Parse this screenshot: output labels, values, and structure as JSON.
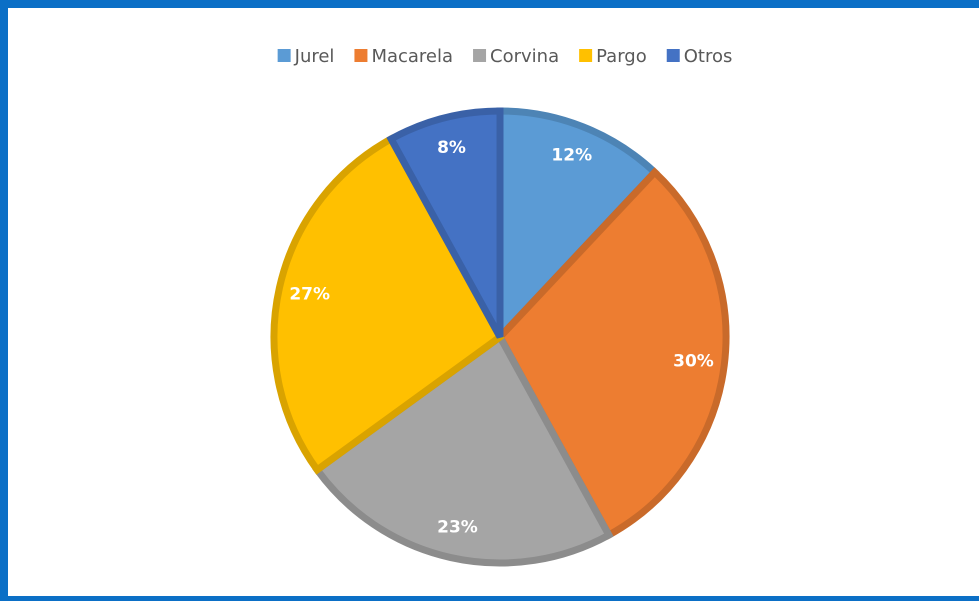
{
  "chart_data": {
    "type": "pie",
    "categories": [
      "Jurel",
      "Macarela",
      "Corvina",
      "Pargo",
      "Otros"
    ],
    "values": [
      12,
      30,
      23,
      27,
      8
    ],
    "value_labels": [
      "12%",
      "30%",
      "23%",
      "27%",
      "8%"
    ],
    "colors": [
      "#5b9bd5",
      "#ed7d31",
      "#a5a5a5",
      "#ffc000",
      "#4472c4"
    ],
    "legend": "top"
  }
}
